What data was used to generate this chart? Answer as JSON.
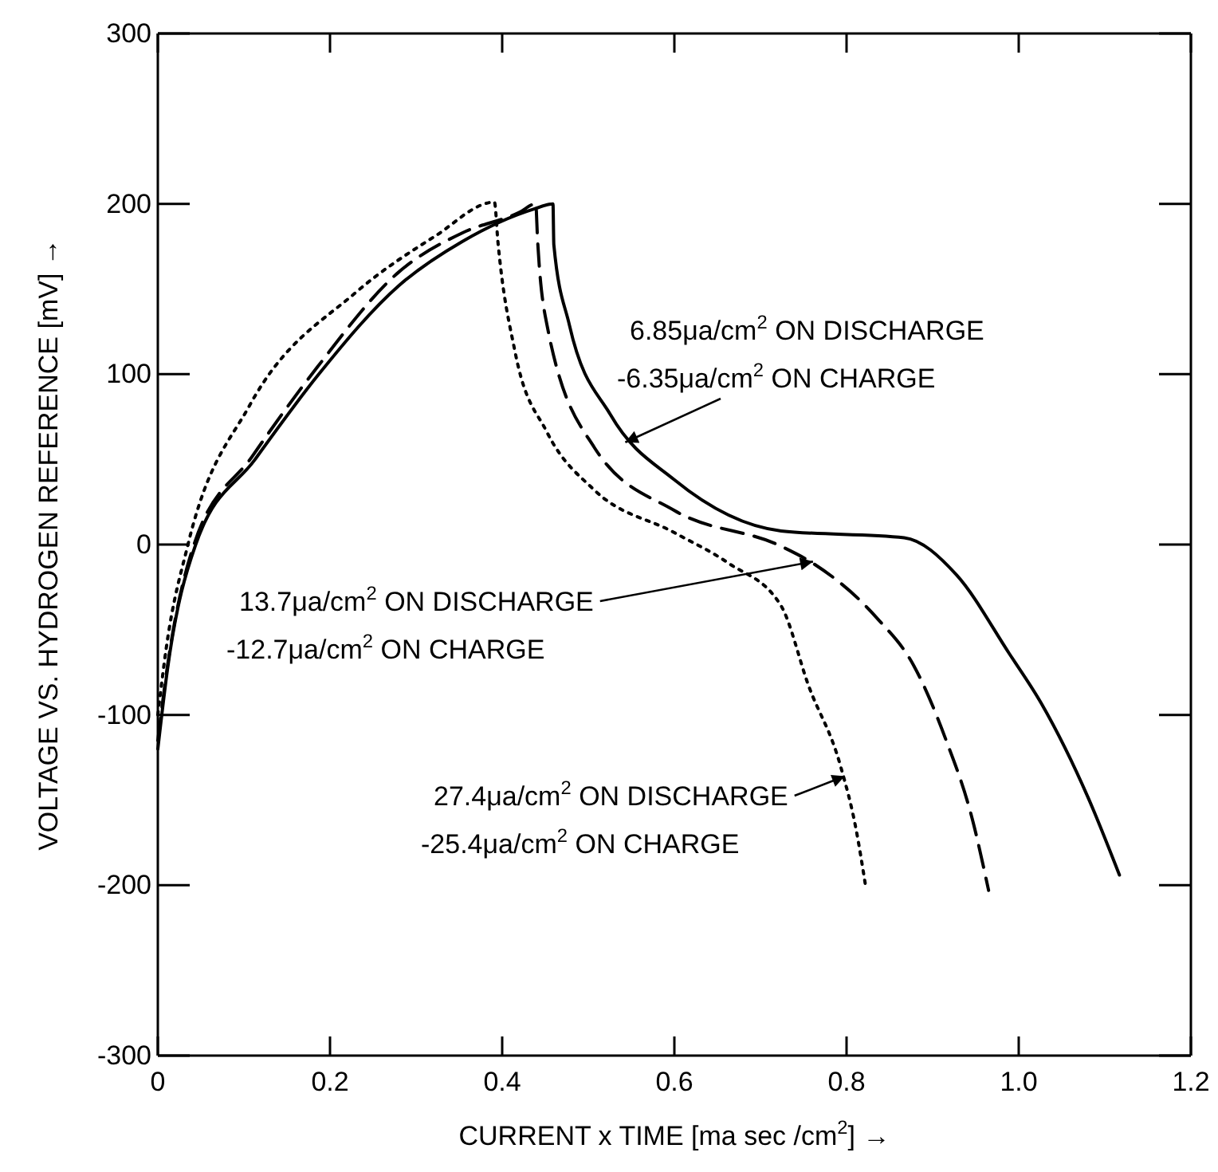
{
  "chart_data": {
    "type": "line",
    "xlabel": "CURRENT x TIME [ma sec /cm$^{2}$] →",
    "ylabel": "VOLTAGE VS. HYDROGEN REFERENCE [mV] →",
    "xlim": [
      0,
      1.2
    ],
    "xticks": [
      0,
      0.2,
      0.4,
      0.6,
      0.8,
      {
        "value": 1,
        "label": "1.0"
      },
      1.2
    ],
    "ylim": [
      -300,
      300
    ],
    "yticks": [
      -300,
      -200,
      -100,
      0,
      100,
      200,
      300
    ],
    "marker": "none",
    "series": [
      {
        "color": "#000000",
        "line_style": "solid",
        "x": [
          0,
          0.011,
          0.044,
          0.113,
          0.187,
          0.28,
          0.354,
          0.437,
          0.459,
          0.46,
          0.478,
          0.526,
          0.6,
          0.724,
          0.867,
          0.928,
          0.989,
          1.026,
          1.081,
          1.117
        ],
        "values": [
          -120,
          -74,
          0,
          50,
          100,
          152,
          178,
          197,
          200,
          176,
          129,
          76,
          38,
          8,
          4,
          -18,
          -64,
          -93,
          -149,
          -194
        ]
      },
      {
        "color": "#000000",
        "line_style": "dashed",
        "x": [
          0,
          0.011,
          0.042,
          0.11,
          0.185,
          0.28,
          0.354,
          0.42,
          0.439,
          0.441,
          0.452,
          0.507,
          0.6,
          0.724,
          0.761,
          0.835,
          0.878,
          0.915,
          0.946,
          0.965
        ],
        "values": [
          -115,
          -72,
          0,
          52,
          104,
          160,
          183,
          195,
          200,
          180,
          129,
          57,
          20,
          -1,
          -11,
          -43,
          -71,
          -114,
          -161,
          -203
        ]
      },
      {
        "color": "#000000",
        "line_style": "dotted",
        "x": [
          0,
          0.01,
          0.035,
          0.107,
          0.23,
          0.322,
          0.391,
          0.395,
          0.415,
          0.452,
          0.507,
          0.6,
          0.663,
          0.724,
          0.756,
          0.793,
          0.811,
          0.822
        ],
        "values": [
          -100,
          -60,
          0,
          82,
          148,
          181,
          201,
          178,
          113,
          66,
          32,
          7,
          -11,
          -36,
          -83,
          -130,
          -167,
          -200
        ]
      }
    ],
    "annotations": [
      {
        "text": "6.85μa/cm$^{2}$ ON DISCHARGE\n-6.35μa/cm$^{2}$ ON CHARGE",
        "x": 0.543,
        "y": 60
      },
      {
        "text": "13.7μa/cm$^{2}$ ON DISCHARGE\n-12.7μa/cm$^{2}$ ON CHARGE",
        "x": 0.761,
        "y": -10
      },
      {
        "text": "27.4μa/cm$^{2}$ ON DISCHARGE\n-25.4μa/cm$^{2}$ ON CHARGE",
        "x": 0.798,
        "y": -136
      }
    ]
  }
}
